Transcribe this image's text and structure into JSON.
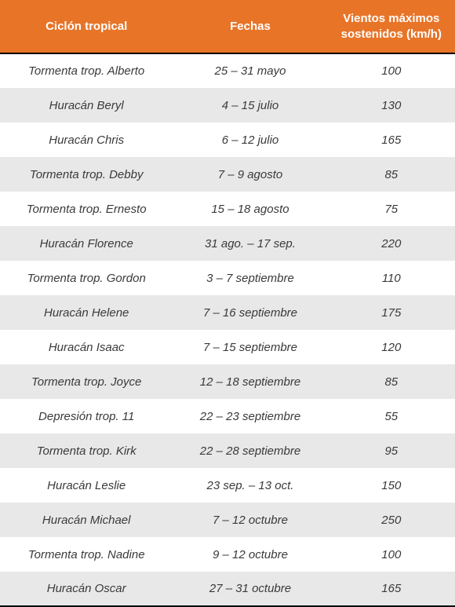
{
  "table": {
    "type": "table",
    "header_bg": "#e87428",
    "header_fg": "#ffffff",
    "row_odd_bg": "#ffffff",
    "row_even_bg": "#e8e8e8",
    "text_color": "#3a3a3a",
    "border_color": "#000000",
    "font_size": 15,
    "header_font_size": 15,
    "font_style_body": "italic",
    "columns": [
      {
        "label": "Ciclón tropical",
        "width": "38%"
      },
      {
        "label": "Fechas",
        "width": "34%"
      },
      {
        "label": "Vientos máximos sostenidos (km/h)",
        "width": "28%"
      }
    ],
    "rows": [
      {
        "name": "Tormenta trop. Alberto",
        "dates": "25 – 31 mayo",
        "wind": "100"
      },
      {
        "name": "Huracán Beryl",
        "dates": "4 – 15 julio",
        "wind": "130"
      },
      {
        "name": "Huracán Chris",
        "dates": "6 – 12 julio",
        "wind": "165"
      },
      {
        "name": "Tormenta trop. Debby",
        "dates": "7 – 9 agosto",
        "wind": "85"
      },
      {
        "name": "Tormenta trop. Ernesto",
        "dates": "15 – 18 agosto",
        "wind": "75"
      },
      {
        "name": "Huracán Florence",
        "dates": "31 ago. – 17 sep.",
        "wind": "220"
      },
      {
        "name": "Tormenta trop. Gordon",
        "dates": "3 – 7 septiembre",
        "wind": "110"
      },
      {
        "name": "Huracán Helene",
        "dates": "7 – 16 septiembre",
        "wind": "175"
      },
      {
        "name": "Huracán Isaac",
        "dates": "7 – 15 septiembre",
        "wind": "120"
      },
      {
        "name": "Tormenta trop. Joyce",
        "dates": "12 – 18 septiembre",
        "wind": "85"
      },
      {
        "name": "Depresión trop. 11",
        "dates": "22 – 23 septiembre",
        "wind": "55"
      },
      {
        "name": "Tormenta trop. Kirk",
        "dates": "22 – 28 septiembre",
        "wind": "95"
      },
      {
        "name": "Huracán Leslie",
        "dates": "23 sep. – 13 oct.",
        "wind": "150"
      },
      {
        "name": "Huracán Michael",
        "dates": "7 – 12 octubre",
        "wind": "250"
      },
      {
        "name": "Tormenta trop. Nadine",
        "dates": "9 – 12 octubre",
        "wind": "100"
      },
      {
        "name": "Huracán Oscar",
        "dates": "27 – 31 octubre",
        "wind": "165"
      }
    ]
  }
}
